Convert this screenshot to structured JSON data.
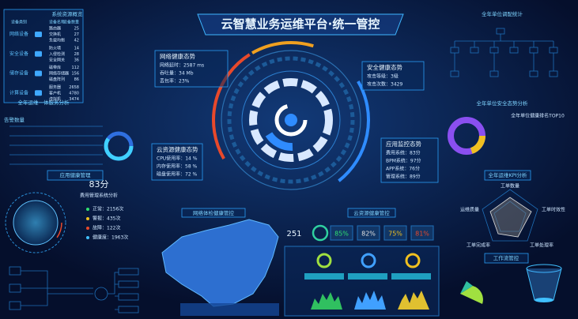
{
  "header": {
    "title": "云智慧业务运维平台·统一管控"
  },
  "resources": {
    "title": "系统资源概览",
    "columns": [
      "设备类别",
      "设备名称",
      "设备数量"
    ],
    "groups": [
      {
        "name": "网络设备",
        "items": [
          [
            "路由器",
            "25"
          ],
          [
            "交换机",
            "27"
          ],
          [
            "负载均衡",
            "42"
          ]
        ]
      },
      {
        "name": "安全设备",
        "items": [
          [
            "防火墙",
            "14"
          ],
          [
            "入侵检测",
            "28"
          ],
          [
            "安全网关",
            "36"
          ]
        ]
      },
      {
        "name": "储存设备",
        "items": [
          [
            "磁带库",
            "112"
          ],
          [
            "网络存储器",
            "156"
          ],
          [
            "磁盘阵列",
            "86"
          ]
        ]
      },
      {
        "name": "计算设备",
        "items": [
          [
            "服务器",
            "2658"
          ],
          [
            "客户机",
            "4780"
          ],
          [
            "虚拟机",
            "3474"
          ]
        ]
      }
    ],
    "footer": "全年运维一体服务分析"
  },
  "alarm": {
    "title": "告警数量"
  },
  "app_health": {
    "title": "应用健康管理",
    "score": "83分",
    "subtitle": "费用管理系统分析",
    "items": [
      "正常：2156次",
      "警报：435次",
      "故障：122次",
      "健康度：1963次"
    ]
  },
  "network": {
    "title": "网络健康态势",
    "items": [
      "网络延时：2587 ms",
      "吞吐量：34 Mb",
      "丢包率：23%"
    ]
  },
  "security": {
    "title": "安全健康态势",
    "items": [
      "攻击等级：3级",
      "攻击次数：3429"
    ]
  },
  "cloud": {
    "title": "云资源健康态势",
    "items": [
      "CPU使用率：14 %",
      "内存使用率：58 %",
      "磁盘使用率：72 %"
    ]
  },
  "apps": {
    "title": "应用监控态势",
    "items": [
      "费用系统：83分",
      "BPM系统：97分",
      "APP系统：76分",
      "管理系统：89分"
    ]
  },
  "net_check": {
    "title": "网络体检健康管控"
  },
  "cloud_ctrl": {
    "title": "云资源健康管控",
    "counter": "251",
    "gauges": [
      "85%",
      "82%",
      "75%",
      "81%"
    ]
  },
  "topology": {
    "title": "全年单位调配统计"
  },
  "security_year": {
    "title": "全年单位安全态势分析",
    "ranking_title": "全年单位健康排名TOP10"
  },
  "kpi": {
    "title": "全年运维KPI分析",
    "axes": [
      "工单数量",
      "工单时效性",
      "工单处理率",
      "工单完成率",
      "运维质量"
    ]
  },
  "workflow": {
    "title": "工作流管控"
  }
}
